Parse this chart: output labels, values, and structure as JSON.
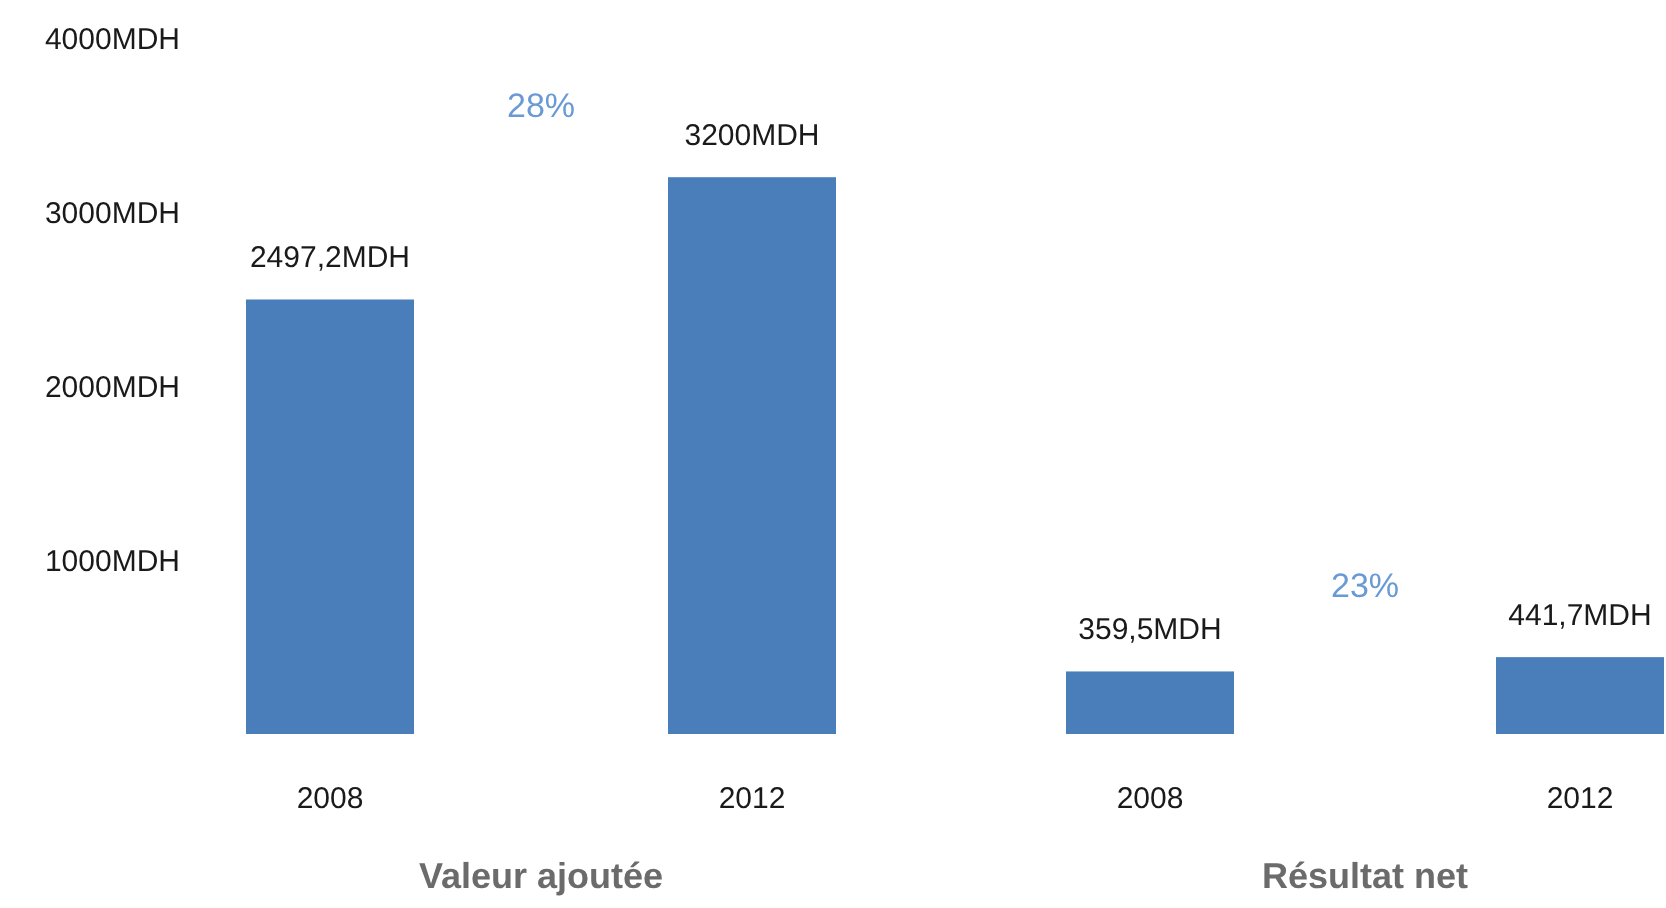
{
  "chart_data": [
    {
      "type": "bar",
      "categories": [
        "2008",
        "2012"
      ],
      "values": [
        2497.2,
        3200
      ],
      "value_labels": [
        "2497,2MDH",
        "3200MDH"
      ],
      "color": "#4a7ebb",
      "xlabel": "Valeur ajoutée",
      "annotations": [
        "28%"
      ],
      "ylim": [
        0,
        4000
      ],
      "yticks": [
        {
          "value": 1000,
          "label": "1000MDH"
        },
        {
          "value": 2000,
          "label": "2000MDH"
        },
        {
          "value": 3000,
          "label": "3000MDH"
        },
        {
          "value": 4000,
          "label": "4000MDH"
        }
      ]
    },
    {
      "type": "bar",
      "categories": [
        "2008",
        "2012"
      ],
      "values": [
        359.5,
        441.7
      ],
      "value_labels": [
        "359,5MDH",
        "441,7MDH"
      ],
      "color": "#4a7ebb",
      "xlabel": "Résultat net",
      "annotations": [
        "23%"
      ],
      "ylim": [
        0,
        4000
      ],
      "tick_labels": "x"
    }
  ]
}
